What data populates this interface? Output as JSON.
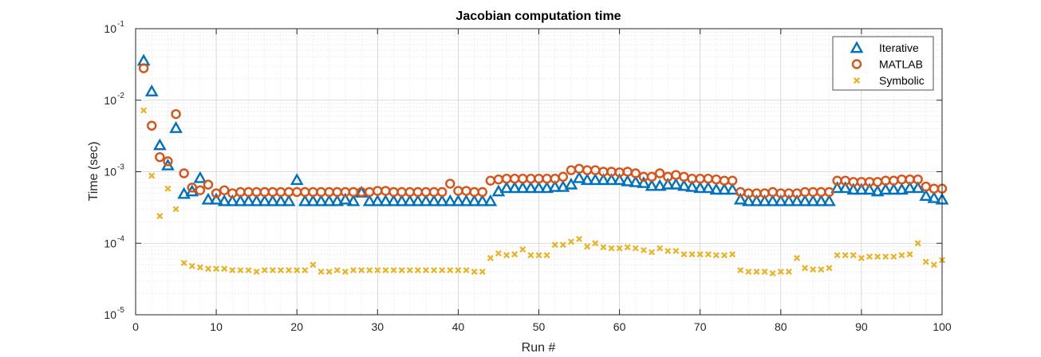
{
  "chart_data": {
    "type": "scatter",
    "title": "Jacobian computation time",
    "xlabel": "Run #",
    "ylabel": "Time (sec)",
    "xlim": [
      0,
      100
    ],
    "ylim": [
      1e-05,
      0.1
    ],
    "yscale": "log",
    "grid": true,
    "minor_grid": true,
    "legend_position": "top-right",
    "x_ticks": [
      0,
      10,
      20,
      30,
      40,
      50,
      60,
      70,
      80,
      90,
      100
    ],
    "x_tick_labels": [
      "0",
      "10",
      "20",
      "30",
      "40",
      "50",
      "60",
      "70",
      "80",
      "90",
      "100"
    ],
    "y_ticks": [
      1e-05,
      0.0001,
      0.001,
      0.01,
      0.1
    ],
    "y_tick_bases": [
      "10",
      "10",
      "10",
      "10",
      "10"
    ],
    "y_tick_exponents": [
      "-5",
      "-4",
      "-3",
      "-2",
      "-1"
    ],
    "x": [
      1,
      2,
      3,
      4,
      5,
      6,
      7,
      8,
      9,
      10,
      11,
      12,
      13,
      14,
      15,
      16,
      17,
      18,
      19,
      20,
      21,
      22,
      23,
      24,
      25,
      26,
      27,
      28,
      29,
      30,
      31,
      32,
      33,
      34,
      35,
      36,
      37,
      38,
      39,
      40,
      41,
      42,
      43,
      44,
      45,
      46,
      47,
      48,
      49,
      50,
      51,
      52,
      53,
      54,
      55,
      56,
      57,
      58,
      59,
      60,
      61,
      62,
      63,
      64,
      65,
      66,
      67,
      68,
      69,
      70,
      71,
      72,
      73,
      74,
      75,
      76,
      77,
      78,
      79,
      80,
      81,
      82,
      83,
      84,
      85,
      86,
      87,
      88,
      89,
      90,
      91,
      92,
      93,
      94,
      95,
      96,
      97,
      98,
      99,
      100
    ],
    "series": [
      {
        "name": "Iterative",
        "marker": "triangle",
        "color": "#0072BD",
        "values": [
          0.035,
          0.013,
          0.0023,
          0.0012,
          0.004,
          0.00048,
          0.00052,
          0.0008,
          0.0004,
          0.0004,
          0.00038,
          0.00038,
          0.00038,
          0.00038,
          0.00038,
          0.00038,
          0.00038,
          0.00038,
          0.00038,
          0.00075,
          0.00038,
          0.00038,
          0.00038,
          0.00038,
          0.00038,
          0.0004,
          0.00038,
          0.0005,
          0.00038,
          0.00038,
          0.00038,
          0.00038,
          0.00038,
          0.00038,
          0.00038,
          0.00038,
          0.00038,
          0.00038,
          0.00038,
          0.00038,
          0.00038,
          0.00038,
          0.00038,
          0.00038,
          0.00052,
          0.00058,
          0.00058,
          0.00058,
          0.00058,
          0.00058,
          0.00058,
          0.0006,
          0.0006,
          0.00065,
          0.0008,
          0.00075,
          0.00075,
          0.00075,
          0.00075,
          0.00075,
          0.00072,
          0.0007,
          0.00068,
          0.00062,
          0.00062,
          0.00065,
          0.00065,
          0.00062,
          0.0006,
          0.00058,
          0.00058,
          0.00055,
          0.00055,
          0.00055,
          0.0004,
          0.00038,
          0.00038,
          0.00038,
          0.00038,
          0.00038,
          0.00038,
          0.00038,
          0.00038,
          0.00038,
          0.00038,
          0.00038,
          0.00058,
          0.00058,
          0.00055,
          0.00055,
          0.00055,
          0.00052,
          0.00055,
          0.00055,
          0.00055,
          0.00058,
          0.00058,
          0.00045,
          0.00042,
          0.0004
        ]
      },
      {
        "name": "MATLAB",
        "marker": "circle",
        "color": "#D95319",
        "values": [
          0.028,
          0.0044,
          0.0016,
          0.0014,
          0.0064,
          0.00095,
          0.0006,
          0.00055,
          0.00066,
          0.0005,
          0.00055,
          0.0005,
          0.00052,
          0.00052,
          0.00052,
          0.00052,
          0.00052,
          0.00052,
          0.00052,
          0.00052,
          0.00052,
          0.00052,
          0.00052,
          0.00052,
          0.00052,
          0.00052,
          0.00052,
          0.00052,
          0.00052,
          0.00054,
          0.00054,
          0.00052,
          0.00052,
          0.00052,
          0.00052,
          0.00052,
          0.00052,
          0.00052,
          0.00068,
          0.00054,
          0.00054,
          0.00052,
          0.00052,
          0.00075,
          0.00078,
          0.0008,
          0.0008,
          0.0008,
          0.0008,
          0.0008,
          0.0008,
          0.0008,
          0.00085,
          0.00105,
          0.0011,
          0.00105,
          0.00105,
          0.001,
          0.001,
          0.00098,
          0.001,
          0.00095,
          0.00085,
          0.00085,
          0.00095,
          0.00085,
          0.0009,
          0.00085,
          0.0008,
          0.0008,
          0.0008,
          0.00078,
          0.00075,
          0.00075,
          0.00052,
          0.0005,
          0.0005,
          0.0005,
          0.00052,
          0.0005,
          0.0005,
          0.0005,
          0.00052,
          0.00052,
          0.00052,
          0.00052,
          0.00075,
          0.00075,
          0.00072,
          0.00072,
          0.00072,
          0.00072,
          0.00075,
          0.00075,
          0.00078,
          0.00078,
          0.00078,
          0.00062,
          0.00058,
          0.00058
        ]
      },
      {
        "name": "Symbolic",
        "marker": "x",
        "color": "#EDB120",
        "values": [
          0.0072,
          0.00088,
          0.00024,
          0.00058,
          0.0003,
          5.3e-05,
          4.8e-05,
          4.6e-05,
          4.4e-05,
          4.4e-05,
          4.4e-05,
          4.2e-05,
          4.2e-05,
          4.2e-05,
          4e-05,
          4.2e-05,
          4.2e-05,
          4.2e-05,
          4.2e-05,
          4.2e-05,
          4.2e-05,
          5e-05,
          4e-05,
          4e-05,
          4.2e-05,
          4e-05,
          4.2e-05,
          4.2e-05,
          4.2e-05,
          4.2e-05,
          4.2e-05,
          4.2e-05,
          4.2e-05,
          4.2e-05,
          4.2e-05,
          4.2e-05,
          4.2e-05,
          4.2e-05,
          4.2e-05,
          4.2e-05,
          4.2e-05,
          4e-05,
          4e-05,
          6.2e-05,
          7.2e-05,
          6.8e-05,
          7e-05,
          8.2e-05,
          6.8e-05,
          6.8e-05,
          6.8e-05,
          9.5e-05,
          9.5e-05,
          0.000105,
          0.000115,
          9e-05,
          0.0001,
          8.8e-05,
          8.5e-05,
          8.5e-05,
          8.8e-05,
          8.5e-05,
          8e-05,
          7.5e-05,
          8.5e-05,
          7.8e-05,
          7.8e-05,
          7e-05,
          7e-05,
          7e-05,
          7e-05,
          6.8e-05,
          6.8e-05,
          7e-05,
          4.2e-05,
          4e-05,
          4e-05,
          4e-05,
          3.8e-05,
          4e-05,
          4e-05,
          6.2e-05,
          4.5e-05,
          4.3e-05,
          4.3e-05,
          4.5e-05,
          6.8e-05,
          6.8e-05,
          6.8e-05,
          6.2e-05,
          6.5e-05,
          6.5e-05,
          6.5e-05,
          6.5e-05,
          6.8e-05,
          7e-05,
          0.0001,
          5.5e-05,
          5e-05,
          5.8e-05
        ]
      }
    ]
  }
}
